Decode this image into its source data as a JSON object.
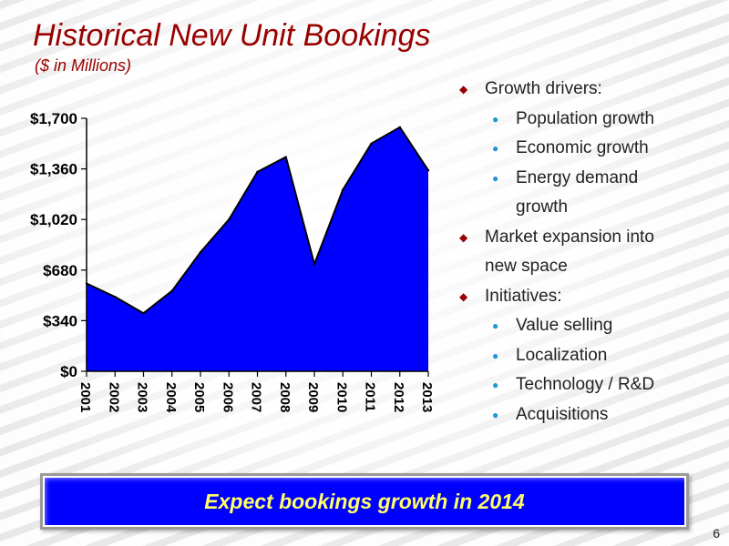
{
  "slide": {
    "title": "Historical New Unit Bookings",
    "subtitle": "($ in Millions)",
    "banner": "Expect bookings growth in 2014",
    "page_number": "6"
  },
  "bullets": [
    {
      "level": 1,
      "text": "Growth drivers:"
    },
    {
      "level": 2,
      "text": "Population growth"
    },
    {
      "level": 2,
      "text": "Economic growth"
    },
    {
      "level": 2,
      "text": "Energy demand"
    },
    {
      "level": 2,
      "text": "growth",
      "continuation": true
    },
    {
      "level": 1,
      "text": "Market expansion into"
    },
    {
      "level": 1,
      "text": "new space",
      "continuation": true
    },
    {
      "level": 1,
      "text": "Initiatives:"
    },
    {
      "level": 2,
      "text": "Value selling"
    },
    {
      "level": 2,
      "text": "Localization"
    },
    {
      "level": 2,
      "text": "Technology / R&D"
    },
    {
      "level": 2,
      "text": "Acquisitions"
    }
  ],
  "colors": {
    "title": "#990000",
    "area_fill": "#0000ff",
    "area_stroke": "#000000",
    "bullet_level1": "#990000",
    "bullet_level2": "#1a9ad6",
    "banner_bg": "#0000ff",
    "banner_text": "#ffff66"
  },
  "chart_data": {
    "type": "area",
    "categories": [
      "2001",
      "2002",
      "2003",
      "2004",
      "2005",
      "2006",
      "2007",
      "2008",
      "2009",
      "2010",
      "2011",
      "2012",
      "2013"
    ],
    "values": [
      590,
      500,
      390,
      540,
      800,
      1020,
      1340,
      1440,
      720,
      1220,
      1530,
      1640,
      1350
    ],
    "y_ticks": [
      0,
      340,
      680,
      1020,
      1360,
      1700
    ],
    "y_tick_labels": [
      "$0",
      "$340",
      "$680",
      "$1,020",
      "$1,360",
      "$1,700"
    ],
    "ylim": [
      0,
      1700
    ],
    "x_labels_rotated": true,
    "grid": false
  }
}
